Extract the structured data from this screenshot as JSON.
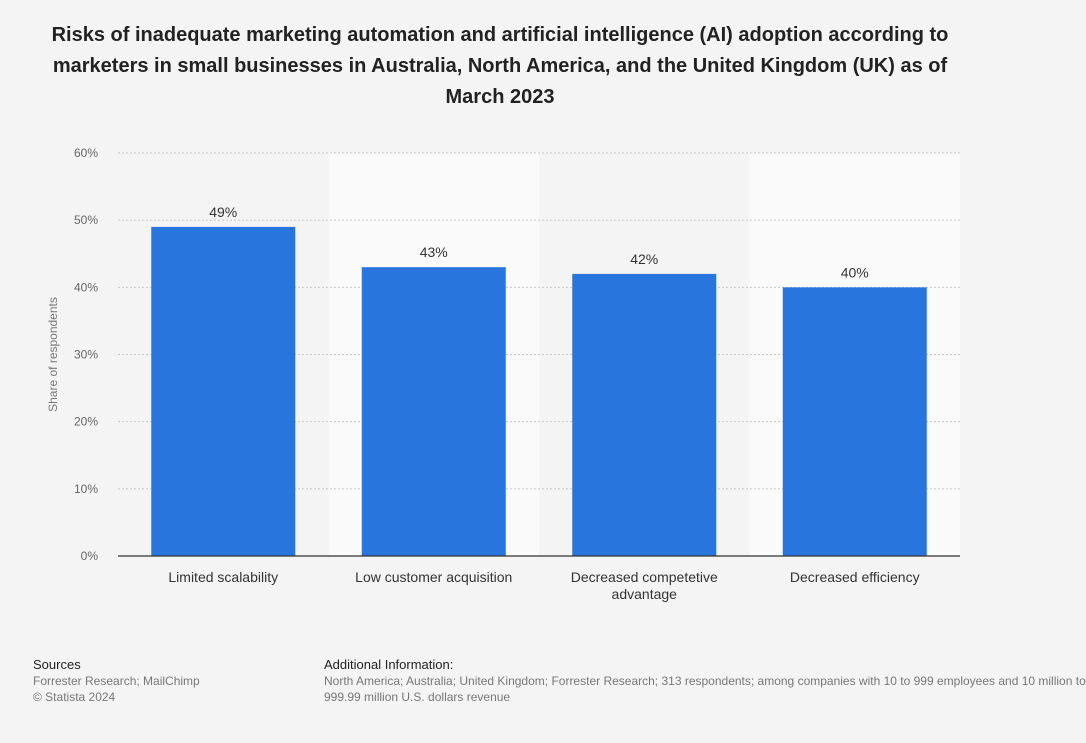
{
  "title": "Risks of inadequate marketing automation and artificial intelligence (AI) adoption according to marketers in small businesses in Australia, North America, and the United Kingdom (UK) as of March 2023",
  "colors": {
    "bar": "#2876dd",
    "background": "#f4f4f4",
    "band": "#fafafa",
    "grid": "#c8c8c8",
    "axis": "#333333"
  },
  "chart_data": {
    "type": "bar",
    "categories": [
      "Limited scalability",
      "Low customer acquisition",
      "Decreased competetive advantage",
      "Decreased efficiency"
    ],
    "category_lines": [
      [
        "Limited scalability"
      ],
      [
        "Low customer acquisition"
      ],
      [
        "Decreased competetive",
        "advantage"
      ],
      [
        "Decreased efficiency"
      ]
    ],
    "values": [
      49,
      43,
      42,
      40
    ],
    "value_labels": [
      "49%",
      "43%",
      "42%",
      "40%"
    ],
    "ylabel": "Share of respondents",
    "ylim": [
      0,
      60
    ],
    "yticks": [
      0,
      10,
      20,
      30,
      40,
      50,
      60
    ],
    "ytick_labels": [
      "0%",
      "10%",
      "20%",
      "30%",
      "40%",
      "50%",
      "60%"
    ],
    "grid": true
  },
  "footer": {
    "sources_heading": "Sources",
    "sources_line1": "Forrester Research; MailChimp",
    "sources_line2": "© Statista 2024",
    "additional_heading": "Additional Information:",
    "additional_line1": "North America; Australia; United Kingdom; Forrester Research; 313 respondents; among companies with 10 to 999 employees and 10 million to",
    "additional_line2": "999.99 million U.S. dollars revenue"
  }
}
